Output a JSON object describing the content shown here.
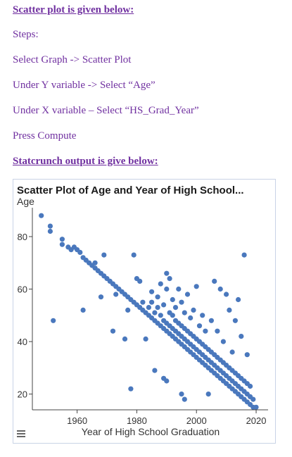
{
  "instructions": {
    "heading": "Scatter plot is given below:",
    "steps_label": "Steps:",
    "step1": "Select Graph -> Scatter Plot",
    "step2": "Under Y variable -> Select “Age”",
    "step3": "Under X variable – Select “HS_Grad_Year”",
    "step4": "Press Compute",
    "output_heading": "Statcrunch output is give below:"
  },
  "colors": {
    "text": "#7030a0",
    "point": "#4a78bd"
  },
  "plot": {
    "menu_icon": "hamburger-menu-icon"
  },
  "chart_data": {
    "type": "scatter",
    "title": "Scatter Plot of Age and Year of High School...",
    "xlabel": "Year of High School Graduation",
    "ylabel": "Age",
    "xlim": [
      1945,
      2024
    ],
    "ylim": [
      14,
      91
    ],
    "xticks": [
      1960,
      1980,
      2000,
      2020
    ],
    "yticks": [
      20,
      40,
      60,
      80
    ],
    "grid": false,
    "points": [
      [
        1948,
        88
      ],
      [
        1951,
        84
      ],
      [
        1951,
        82
      ],
      [
        1952,
        48
      ],
      [
        1955,
        79
      ],
      [
        1955,
        77
      ],
      [
        1957,
        76
      ],
      [
        1958,
        75
      ],
      [
        1959,
        76
      ],
      [
        1960,
        75
      ],
      [
        1961,
        74
      ],
      [
        1962,
        72
      ],
      [
        1962,
        52
      ],
      [
        1963,
        71
      ],
      [
        1964,
        70
      ],
      [
        1965,
        69
      ],
      [
        1966,
        68
      ],
      [
        1966,
        70
      ],
      [
        1967,
        67
      ],
      [
        1968,
        66
      ],
      [
        1968,
        57
      ],
      [
        1969,
        73
      ],
      [
        1969,
        65
      ],
      [
        1970,
        64
      ],
      [
        1971,
        63
      ],
      [
        1972,
        62
      ],
      [
        1972,
        44
      ],
      [
        1973,
        61
      ],
      [
        1973,
        58
      ],
      [
        1974,
        60
      ],
      [
        1975,
        59
      ],
      [
        1976,
        58
      ],
      [
        1976,
        41
      ],
      [
        1977,
        57
      ],
      [
        1977,
        52
      ],
      [
        1978,
        56
      ],
      [
        1978,
        22
      ],
      [
        1979,
        73
      ],
      [
        1979,
        55
      ],
      [
        1980,
        54
      ],
      [
        1980,
        64
      ],
      [
        1981,
        53
      ],
      [
        1981,
        63
      ],
      [
        1982,
        52
      ],
      [
        1982,
        55
      ],
      [
        1983,
        51
      ],
      [
        1983,
        41
      ],
      [
        1984,
        50
      ],
      [
        1984,
        53
      ],
      [
        1985,
        59
      ],
      [
        1985,
        49
      ],
      [
        1985,
        55
      ],
      [
        1986,
        48
      ],
      [
        1986,
        51
      ],
      [
        1986,
        29
      ],
      [
        1987,
        47
      ],
      [
        1987,
        53
      ],
      [
        1987,
        57
      ],
      [
        1988,
        46
      ],
      [
        1988,
        50
      ],
      [
        1988,
        62
      ],
      [
        1989,
        45
      ],
      [
        1989,
        48
      ],
      [
        1989,
        54
      ],
      [
        1989,
        26
      ],
      [
        1990,
        44
      ],
      [
        1990,
        47
      ],
      [
        1990,
        60
      ],
      [
        1990,
        66
      ],
      [
        1990,
        25
      ],
      [
        1991,
        43
      ],
      [
        1991,
        46
      ],
      [
        1991,
        51
      ],
      [
        1991,
        64
      ],
      [
        1992,
        42
      ],
      [
        1992,
        45
      ],
      [
        1992,
        50
      ],
      [
        1992,
        56
      ],
      [
        1993,
        41
      ],
      [
        1993,
        44
      ],
      [
        1993,
        48
      ],
      [
        1993,
        53
      ],
      [
        1994,
        40
      ],
      [
        1994,
        43
      ],
      [
        1994,
        47
      ],
      [
        1994,
        60
      ],
      [
        1995,
        39
      ],
      [
        1995,
        42
      ],
      [
        1995,
        46
      ],
      [
        1995,
        55
      ],
      [
        1995,
        20
      ],
      [
        1996,
        38
      ],
      [
        1996,
        41
      ],
      [
        1996,
        45
      ],
      [
        1996,
        51
      ],
      [
        1996,
        18
      ],
      [
        1997,
        37
      ],
      [
        1997,
        40
      ],
      [
        1997,
        44
      ],
      [
        1997,
        58
      ],
      [
        1998,
        36
      ],
      [
        1998,
        39
      ],
      [
        1998,
        43
      ],
      [
        1998,
        49
      ],
      [
        1999,
        35
      ],
      [
        1999,
        38
      ],
      [
        1999,
        42
      ],
      [
        1999,
        52
      ],
      [
        2000,
        34
      ],
      [
        2000,
        37
      ],
      [
        2000,
        41
      ],
      [
        2000,
        61
      ],
      [
        2001,
        33
      ],
      [
        2001,
        36
      ],
      [
        2001,
        40
      ],
      [
        2001,
        46
      ],
      [
        2002,
        32
      ],
      [
        2002,
        35
      ],
      [
        2002,
        39
      ],
      [
        2002,
        50
      ],
      [
        2003,
        31
      ],
      [
        2003,
        34
      ],
      [
        2003,
        38
      ],
      [
        2003,
        44
      ],
      [
        2004,
        30
      ],
      [
        2004,
        33
      ],
      [
        2004,
        37
      ],
      [
        2004,
        20
      ],
      [
        2005,
        29
      ],
      [
        2005,
        32
      ],
      [
        2005,
        36
      ],
      [
        2005,
        48
      ],
      [
        2006,
        28
      ],
      [
        2006,
        31
      ],
      [
        2006,
        35
      ],
      [
        2006,
        63
      ],
      [
        2007,
        27
      ],
      [
        2007,
        30
      ],
      [
        2007,
        34
      ],
      [
        2007,
        44
      ],
      [
        2008,
        26
      ],
      [
        2008,
        29
      ],
      [
        2008,
        33
      ],
      [
        2008,
        60
      ],
      [
        2009,
        25
      ],
      [
        2009,
        28
      ],
      [
        2009,
        32
      ],
      [
        2009,
        40
      ],
      [
        2010,
        24
      ],
      [
        2010,
        27
      ],
      [
        2010,
        31
      ],
      [
        2010,
        58
      ],
      [
        2011,
        23
      ],
      [
        2011,
        26
      ],
      [
        2011,
        30
      ],
      [
        2011,
        52
      ],
      [
        2012,
        22
      ],
      [
        2012,
        25
      ],
      [
        2012,
        29
      ],
      [
        2012,
        36
      ],
      [
        2013,
        21
      ],
      [
        2013,
        24
      ],
      [
        2013,
        28
      ],
      [
        2013,
        48
      ],
      [
        2014,
        20
      ],
      [
        2014,
        23
      ],
      [
        2014,
        27
      ],
      [
        2014,
        56
      ],
      [
        2015,
        19
      ],
      [
        2015,
        22
      ],
      [
        2015,
        26
      ],
      [
        2015,
        42
      ],
      [
        2016,
        18
      ],
      [
        2016,
        21
      ],
      [
        2016,
        25
      ],
      [
        2016,
        73
      ],
      [
        2017,
        17
      ],
      [
        2017,
        20
      ],
      [
        2017,
        24
      ],
      [
        2017,
        35
      ],
      [
        2018,
        16
      ],
      [
        2018,
        19
      ],
      [
        2018,
        23
      ],
      [
        2019,
        15
      ],
      [
        2019,
        18
      ],
      [
        2020,
        15
      ]
    ]
  }
}
